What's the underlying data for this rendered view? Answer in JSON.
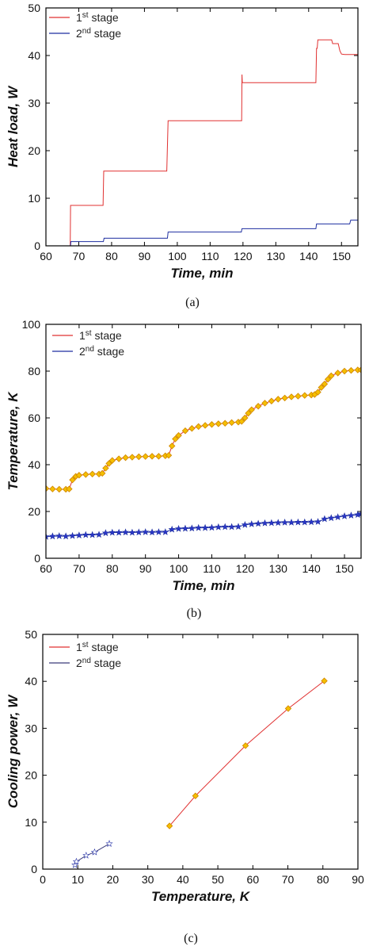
{
  "chart_data": [
    {
      "type": "line",
      "caption": "(a)",
      "xlabel": "Time, min",
      "ylabel": "Heat load, W",
      "xlim": [
        60,
        155
      ],
      "ylim": [
        0,
        50
      ],
      "xticks": [
        60,
        70,
        80,
        90,
        100,
        110,
        120,
        130,
        140,
        150
      ],
      "yticks": [
        0,
        10,
        20,
        30,
        40,
        50
      ],
      "legend": "top-left",
      "series": [
        {
          "name_base": "1",
          "name_sup": "st",
          "name_tail": " stage",
          "color": "#e03030",
          "marker": "none",
          "points": [
            [
              60,
              0
            ],
            [
              67.4,
              0
            ],
            [
              67.5,
              8.5
            ],
            [
              77.4,
              8.5
            ],
            [
              77.6,
              15.7
            ],
            [
              96.8,
              15.7
            ],
            [
              97.2,
              26.3
            ],
            [
              119.6,
              26.3
            ],
            [
              119.7,
              36
            ],
            [
              119.8,
              34.3
            ],
            [
              142.2,
              34.3
            ],
            [
              142.4,
              41.5
            ],
            [
              142.6,
              41.5
            ],
            [
              142.8,
              43.3
            ],
            [
              147,
              43.3
            ],
            [
              147.3,
              42.5
            ],
            [
              149,
              42.5
            ],
            [
              149.5,
              41
            ],
            [
              150,
              40.3
            ],
            [
              151,
              40.2
            ],
            [
              155,
              40.2
            ]
          ]
        },
        {
          "name_base": "2",
          "name_sup": "nd",
          "name_tail": " stage",
          "color": "#1e2fa0",
          "marker": "none",
          "points": [
            [
              60,
              0
            ],
            [
              67.5,
              0
            ],
            [
              67.6,
              0.9
            ],
            [
              77.5,
              0.9
            ],
            [
              77.7,
              1.6
            ],
            [
              97,
              1.6
            ],
            [
              97.2,
              2.9
            ],
            [
              119.5,
              2.9
            ],
            [
              119.7,
              3.6
            ],
            [
              142.2,
              3.6
            ],
            [
              142.4,
              4.6
            ],
            [
              152.5,
              4.6
            ],
            [
              152.8,
              5.4
            ],
            [
              155,
              5.4
            ]
          ]
        }
      ]
    },
    {
      "type": "line",
      "caption": "(b)",
      "xlabel": "Time, min",
      "ylabel": "Temperature, K",
      "xlim": [
        60,
        155
      ],
      "ylim": [
        0,
        100
      ],
      "xticks": [
        60,
        70,
        80,
        90,
        100,
        110,
        120,
        130,
        140,
        150
      ],
      "yticks": [
        0,
        20,
        40,
        60,
        80,
        100
      ],
      "legend": "top-left",
      "series": [
        {
          "name_base": "1",
          "name_sup": "st",
          "name_tail": " stage",
          "color": "#e03030",
          "marker": "diamond",
          "marker_fill": "#f5c000",
          "marker_stroke": "#d48a00",
          "points": [
            [
              60,
              29.8
            ],
            [
              62,
              29.6
            ],
            [
              64,
              29.5
            ],
            [
              66,
              29.5
            ],
            [
              67,
              29.6
            ],
            [
              68,
              33.5
            ],
            [
              69,
              35
            ],
            [
              70,
              35.5
            ],
            [
              72,
              35.8
            ],
            [
              74,
              36
            ],
            [
              76,
              36
            ],
            [
              77,
              36.3
            ],
            [
              78,
              38.5
            ],
            [
              79,
              40.5
            ],
            [
              80,
              41.8
            ],
            [
              82,
              42.5
            ],
            [
              84,
              43
            ],
            [
              86,
              43.2
            ],
            [
              88,
              43.4
            ],
            [
              90,
              43.5
            ],
            [
              92,
              43.6
            ],
            [
              94,
              43.6
            ],
            [
              96,
              43.8
            ],
            [
              97,
              44
            ],
            [
              98,
              48
            ],
            [
              99,
              51
            ],
            [
              100,
              52.5
            ],
            [
              102,
              54.5
            ],
            [
              104,
              55.5
            ],
            [
              106,
              56.3
            ],
            [
              108,
              56.8
            ],
            [
              110,
              57.2
            ],
            [
              112,
              57.5
            ],
            [
              114,
              57.7
            ],
            [
              116,
              58
            ],
            [
              118,
              58.2
            ],
            [
              119,
              58.5
            ],
            [
              120,
              60
            ],
            [
              121,
              62
            ],
            [
              122,
              63.5
            ],
            [
              124,
              65
            ],
            [
              126,
              66.3
            ],
            [
              128,
              67.2
            ],
            [
              130,
              68
            ],
            [
              132,
              68.5
            ],
            [
              134,
              69
            ],
            [
              136,
              69.3
            ],
            [
              138,
              69.6
            ],
            [
              140,
              69.8
            ],
            [
              141,
              70
            ],
            [
              142,
              71
            ],
            [
              143,
              73
            ],
            [
              144,
              74.5
            ],
            [
              145,
              76.5
            ],
            [
              146,
              78
            ],
            [
              148,
              79.2
            ],
            [
              150,
              80
            ],
            [
              152,
              80.3
            ],
            [
              154,
              80.5
            ],
            [
              155,
              80.5
            ]
          ]
        },
        {
          "name_base": "2",
          "name_sup": "nd",
          "name_tail": " stage",
          "color": "#1e2fa0",
          "marker": "star",
          "marker_fill": "#2a36c8",
          "points": [
            [
              60,
              9.2
            ],
            [
              62,
              9.4
            ],
            [
              64,
              9.5
            ],
            [
              66,
              9.4
            ],
            [
              68,
              9.6
            ],
            [
              70,
              9.8
            ],
            [
              72,
              10
            ],
            [
              74,
              10
            ],
            [
              76,
              10.1
            ],
            [
              78,
              10.8
            ],
            [
              80,
              11
            ],
            [
              82,
              11
            ],
            [
              84,
              11.1
            ],
            [
              86,
              11
            ],
            [
              88,
              11.1
            ],
            [
              90,
              11.2
            ],
            [
              92,
              11.1
            ],
            [
              94,
              11.2
            ],
            [
              96,
              11.2
            ],
            [
              98,
              12.3
            ],
            [
              100,
              12.6
            ],
            [
              102,
              12.7
            ],
            [
              104,
              12.8
            ],
            [
              106,
              13
            ],
            [
              108,
              13
            ],
            [
              110,
              13.1
            ],
            [
              112,
              13.3
            ],
            [
              114,
              13.4
            ],
            [
              116,
              13.4
            ],
            [
              118,
              13.5
            ],
            [
              120,
              14.3
            ],
            [
              122,
              14.6
            ],
            [
              124,
              14.8
            ],
            [
              126,
              15
            ],
            [
              128,
              15.1
            ],
            [
              130,
              15.2
            ],
            [
              132,
              15.3
            ],
            [
              134,
              15.3
            ],
            [
              136,
              15.4
            ],
            [
              138,
              15.4
            ],
            [
              140,
              15.5
            ],
            [
              142,
              15.6
            ],
            [
              144,
              16.8
            ],
            [
              146,
              17.2
            ],
            [
              148,
              17.6
            ],
            [
              150,
              18
            ],
            [
              152,
              18.3
            ],
            [
              154,
              18.6
            ],
            [
              155,
              19
            ]
          ]
        }
      ]
    },
    {
      "type": "line",
      "caption": "(c)",
      "xlabel": "Temperature, K",
      "ylabel": "Cooling power, W",
      "xlim": [
        0,
        90
      ],
      "ylim": [
        0,
        50
      ],
      "xticks": [
        0,
        10,
        20,
        30,
        40,
        50,
        60,
        70,
        80,
        90
      ],
      "yticks": [
        0,
        10,
        20,
        30,
        40,
        50
      ],
      "legend": "top-left",
      "series": [
        {
          "name_base": "1",
          "name_sup": "st",
          "name_tail": " stage",
          "color": "#e03030",
          "marker": "diamond",
          "marker_fill": "#f5c000",
          "marker_stroke": "#d48a00",
          "points": [
            [
              36.2,
              9.2
            ],
            [
              43.6,
              15.6
            ],
            [
              57.9,
              26.3
            ],
            [
              70.1,
              34.2
            ],
            [
              80.4,
              40.1
            ]
          ]
        },
        {
          "name_base": "2",
          "name_sup": "nd",
          "name_tail": " stage",
          "color": "#3a3a7a",
          "marker": "star",
          "marker_fill": "#ffffff",
          "marker_stroke": "#2a36a8",
          "points": [
            [
              9.2,
              0.9
            ],
            [
              9.6,
              1.6
            ],
            [
              12.4,
              2.9
            ],
            [
              14.8,
              3.6
            ],
            [
              19,
              5.4
            ]
          ]
        }
      ]
    }
  ]
}
